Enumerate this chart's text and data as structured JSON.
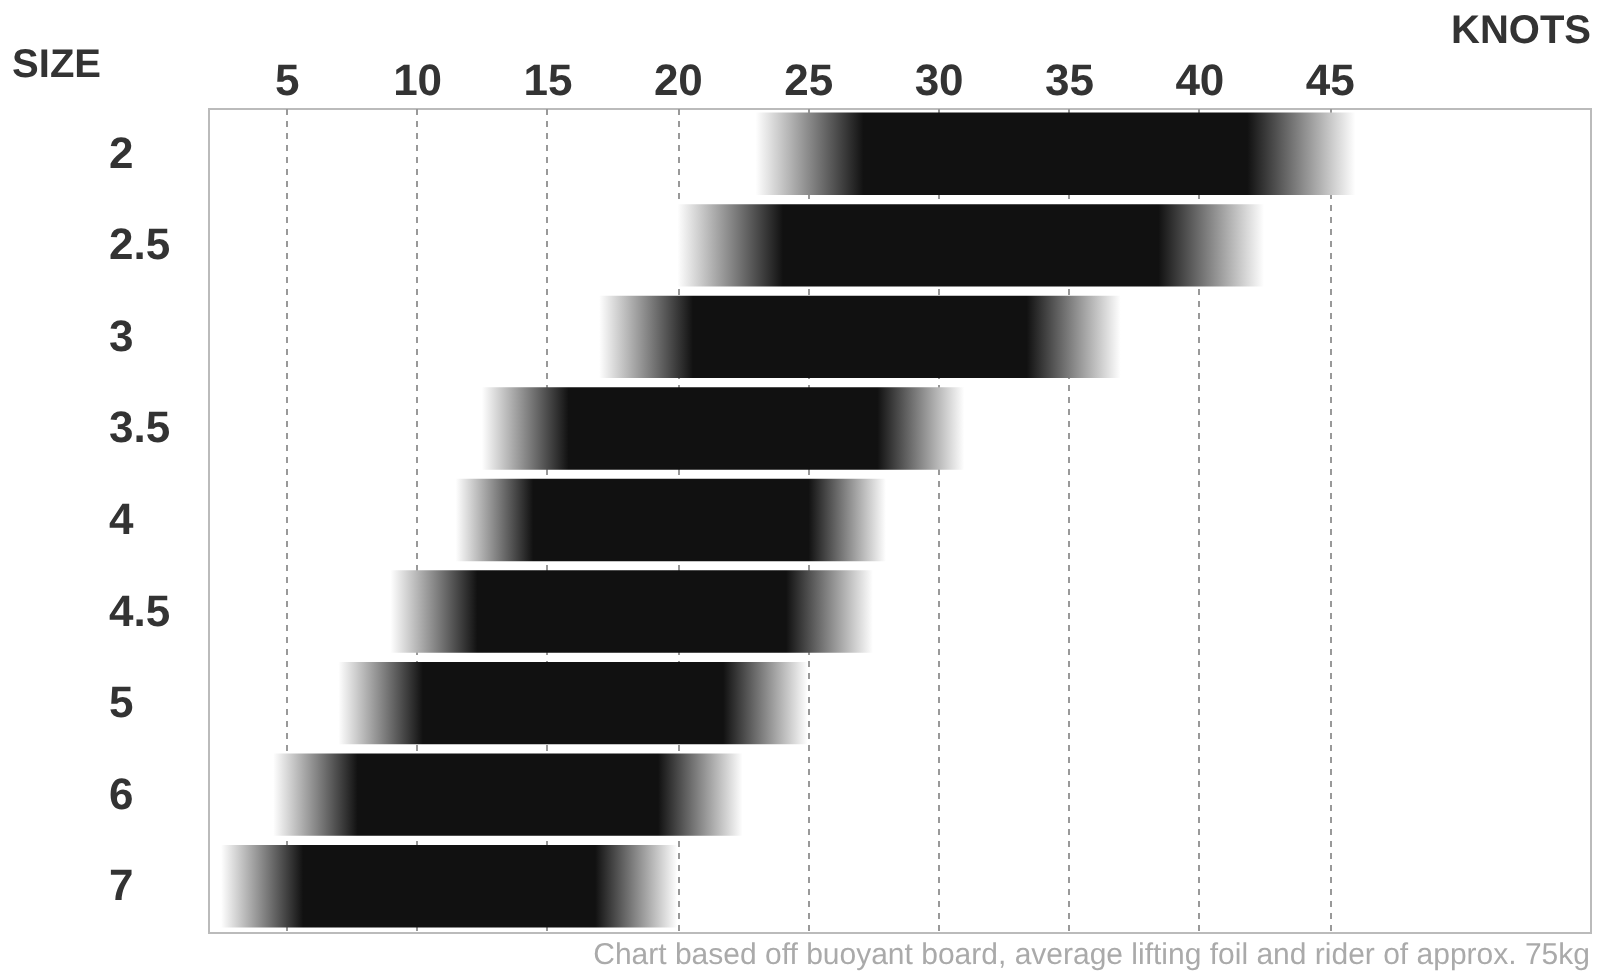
{
  "chart_data": {
    "type": "bar",
    "orientation": "horizontal",
    "xlabel": "KNOTS",
    "ylabel": "SIZE",
    "categories": [
      "2",
      "2.5",
      "3",
      "3.5",
      "4",
      "4.5",
      "5",
      "6",
      "7"
    ],
    "base": [
      23,
      20,
      17,
      12.5,
      11.5,
      9,
      7,
      4.5,
      2.5
    ],
    "values": [
      23,
      22.5,
      20,
      18.5,
      16.5,
      18.5,
      18,
      18,
      17.5
    ],
    "color": "#111111",
    "xlim": [
      2,
      55
    ],
    "xticks": [
      5,
      10,
      15,
      20,
      25,
      30,
      35,
      40,
      45
    ],
    "grid": "x",
    "annotations": [
      "Chart based off buoyant board, average lifting foil and rider of approx. 75kg"
    ]
  }
}
